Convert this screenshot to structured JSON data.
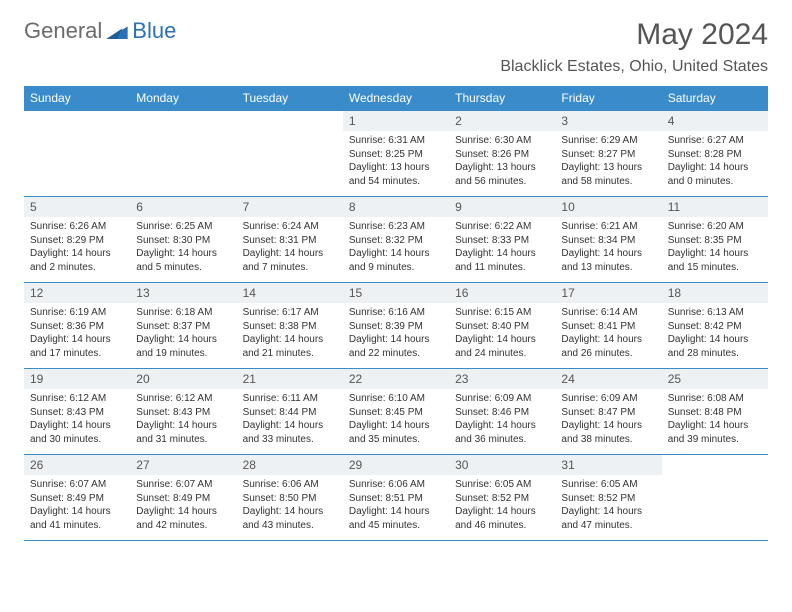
{
  "logo": {
    "text1": "General",
    "text2": "Blue"
  },
  "title": "May 2024",
  "location": "Blacklick Estates, Ohio, United States",
  "day_headers": [
    "Sunday",
    "Monday",
    "Tuesday",
    "Wednesday",
    "Thursday",
    "Friday",
    "Saturday"
  ],
  "colors": {
    "header_bg": "#3a8bc9",
    "header_text": "#ffffff",
    "cell_border": "#3a8bc9",
    "daynum_bg": "#eef1f3",
    "body_text": "#333333",
    "logo_gray": "#6b6b6b",
    "logo_blue": "#2a72b5",
    "page_bg": "#ffffff"
  },
  "layout": {
    "columns": 7,
    "rows": 5,
    "blank_leading_cells": 3
  },
  "days": [
    {
      "n": "1",
      "sunrise": "6:31 AM",
      "sunset": "8:25 PM",
      "daylight": "13 hours and 54 minutes."
    },
    {
      "n": "2",
      "sunrise": "6:30 AM",
      "sunset": "8:26 PM",
      "daylight": "13 hours and 56 minutes."
    },
    {
      "n": "3",
      "sunrise": "6:29 AM",
      "sunset": "8:27 PM",
      "daylight": "13 hours and 58 minutes."
    },
    {
      "n": "4",
      "sunrise": "6:27 AM",
      "sunset": "8:28 PM",
      "daylight": "14 hours and 0 minutes."
    },
    {
      "n": "5",
      "sunrise": "6:26 AM",
      "sunset": "8:29 PM",
      "daylight": "14 hours and 2 minutes."
    },
    {
      "n": "6",
      "sunrise": "6:25 AM",
      "sunset": "8:30 PM",
      "daylight": "14 hours and 5 minutes."
    },
    {
      "n": "7",
      "sunrise": "6:24 AM",
      "sunset": "8:31 PM",
      "daylight": "14 hours and 7 minutes."
    },
    {
      "n": "8",
      "sunrise": "6:23 AM",
      "sunset": "8:32 PM",
      "daylight": "14 hours and 9 minutes."
    },
    {
      "n": "9",
      "sunrise": "6:22 AM",
      "sunset": "8:33 PM",
      "daylight": "14 hours and 11 minutes."
    },
    {
      "n": "10",
      "sunrise": "6:21 AM",
      "sunset": "8:34 PM",
      "daylight": "14 hours and 13 minutes."
    },
    {
      "n": "11",
      "sunrise": "6:20 AM",
      "sunset": "8:35 PM",
      "daylight": "14 hours and 15 minutes."
    },
    {
      "n": "12",
      "sunrise": "6:19 AM",
      "sunset": "8:36 PM",
      "daylight": "14 hours and 17 minutes."
    },
    {
      "n": "13",
      "sunrise": "6:18 AM",
      "sunset": "8:37 PM",
      "daylight": "14 hours and 19 minutes."
    },
    {
      "n": "14",
      "sunrise": "6:17 AM",
      "sunset": "8:38 PM",
      "daylight": "14 hours and 21 minutes."
    },
    {
      "n": "15",
      "sunrise": "6:16 AM",
      "sunset": "8:39 PM",
      "daylight": "14 hours and 22 minutes."
    },
    {
      "n": "16",
      "sunrise": "6:15 AM",
      "sunset": "8:40 PM",
      "daylight": "14 hours and 24 minutes."
    },
    {
      "n": "17",
      "sunrise": "6:14 AM",
      "sunset": "8:41 PM",
      "daylight": "14 hours and 26 minutes."
    },
    {
      "n": "18",
      "sunrise": "6:13 AM",
      "sunset": "8:42 PM",
      "daylight": "14 hours and 28 minutes."
    },
    {
      "n": "19",
      "sunrise": "6:12 AM",
      "sunset": "8:43 PM",
      "daylight": "14 hours and 30 minutes."
    },
    {
      "n": "20",
      "sunrise": "6:12 AM",
      "sunset": "8:43 PM",
      "daylight": "14 hours and 31 minutes."
    },
    {
      "n": "21",
      "sunrise": "6:11 AM",
      "sunset": "8:44 PM",
      "daylight": "14 hours and 33 minutes."
    },
    {
      "n": "22",
      "sunrise": "6:10 AM",
      "sunset": "8:45 PM",
      "daylight": "14 hours and 35 minutes."
    },
    {
      "n": "23",
      "sunrise": "6:09 AM",
      "sunset": "8:46 PM",
      "daylight": "14 hours and 36 minutes."
    },
    {
      "n": "24",
      "sunrise": "6:09 AM",
      "sunset": "8:47 PM",
      "daylight": "14 hours and 38 minutes."
    },
    {
      "n": "25",
      "sunrise": "6:08 AM",
      "sunset": "8:48 PM",
      "daylight": "14 hours and 39 minutes."
    },
    {
      "n": "26",
      "sunrise": "6:07 AM",
      "sunset": "8:49 PM",
      "daylight": "14 hours and 41 minutes."
    },
    {
      "n": "27",
      "sunrise": "6:07 AM",
      "sunset": "8:49 PM",
      "daylight": "14 hours and 42 minutes."
    },
    {
      "n": "28",
      "sunrise": "6:06 AM",
      "sunset": "8:50 PM",
      "daylight": "14 hours and 43 minutes."
    },
    {
      "n": "29",
      "sunrise": "6:06 AM",
      "sunset": "8:51 PM",
      "daylight": "14 hours and 45 minutes."
    },
    {
      "n": "30",
      "sunrise": "6:05 AM",
      "sunset": "8:52 PM",
      "daylight": "14 hours and 46 minutes."
    },
    {
      "n": "31",
      "sunrise": "6:05 AM",
      "sunset": "8:52 PM",
      "daylight": "14 hours and 47 minutes."
    }
  ],
  "labels": {
    "sunrise_prefix": "Sunrise: ",
    "sunset_prefix": "Sunset: ",
    "daylight_prefix": "Daylight: "
  }
}
